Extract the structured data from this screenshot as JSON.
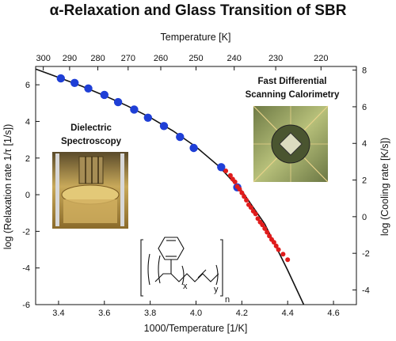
{
  "chart_data": {
    "type": "scatter",
    "title": "α-Relaxation and Glass Transition of SBR",
    "xlabel": "1000/Temperature [1/K]",
    "ylabel": "log (Relaxation rate 1/τ [1/s])",
    "x2label": "Temperature [K]",
    "y2label": "log (Cooling rate [K/s])",
    "xlim": [
      3.3,
      4.7
    ],
    "ylim": [
      -6,
      7
    ],
    "y2lim": [
      -4.8,
      8.2
    ],
    "xticks": [
      3.4,
      3.6,
      3.8,
      4.0,
      4.2,
      4.4,
      4.6
    ],
    "yticks": [
      -6,
      -4,
      -2,
      0,
      2,
      4,
      6
    ],
    "y2ticks": [
      -4,
      -2,
      0,
      2,
      4,
      6,
      8
    ],
    "x2ticks": [
      300,
      290,
      280,
      270,
      260,
      250,
      240,
      230,
      220
    ],
    "series": [
      {
        "color": "#1f3fd6",
        "points": [
          [
            3.41,
            6.35
          ],
          [
            3.47,
            6.1
          ],
          [
            3.53,
            5.8
          ],
          [
            3.6,
            5.45
          ],
          [
            3.66,
            5.05
          ],
          [
            3.73,
            4.65
          ],
          [
            3.79,
            4.2
          ],
          [
            3.86,
            3.75
          ],
          [
            3.93,
            3.15
          ],
          [
            3.99,
            2.55
          ],
          [
            4.11,
            1.5
          ],
          [
            4.18,
            0.4
          ]
        ]
      },
      {
        "color": "#e01c1c",
        "points": [
          [
            4.13,
            1.3
          ],
          [
            4.15,
            1.05
          ],
          [
            4.16,
            0.85
          ],
          [
            4.17,
            0.7
          ],
          [
            4.18,
            0.45
          ],
          [
            4.19,
            0.3
          ],
          [
            4.2,
            0.1
          ],
          [
            4.21,
            -0.1
          ],
          [
            4.22,
            -0.3
          ],
          [
            4.23,
            -0.55
          ],
          [
            4.24,
            -0.7
          ],
          [
            4.25,
            -0.9
          ],
          [
            4.26,
            -1.05
          ],
          [
            4.27,
            -1.3
          ],
          [
            4.28,
            -1.5
          ],
          [
            4.29,
            -1.65
          ],
          [
            4.3,
            -1.85
          ],
          [
            4.31,
            -2.05
          ],
          [
            4.32,
            -2.25
          ],
          [
            4.33,
            -2.45
          ],
          [
            4.34,
            -2.6
          ],
          [
            4.35,
            -2.8
          ],
          [
            4.36,
            -3.0
          ],
          [
            4.38,
            -3.25
          ],
          [
            4.4,
            -3.55
          ]
        ]
      }
    ],
    "fit_curve": {
      "color": "#111111",
      "points": [
        [
          3.3,
          6.86
        ],
        [
          3.4,
          6.4
        ],
        [
          3.5,
          5.93
        ],
        [
          3.6,
          5.41
        ],
        [
          3.7,
          4.85
        ],
        [
          3.8,
          4.22
        ],
        [
          3.9,
          3.48
        ],
        [
          4.0,
          2.61
        ],
        [
          4.1,
          1.55
        ],
        [
          4.2,
          0.2
        ],
        [
          4.3,
          -1.6
        ],
        [
          4.4,
          -4.12
        ],
        [
          4.47,
          -6.0
        ]
      ]
    },
    "annotations": {
      "dielectric": [
        "Dielectric",
        "Spectroscopy"
      ],
      "fdsc": [
        "Fast Differential",
        "Scanning Calorimetry"
      ]
    },
    "structure_labels": {
      "x": "x",
      "y": "y",
      "n": "n"
    }
  }
}
